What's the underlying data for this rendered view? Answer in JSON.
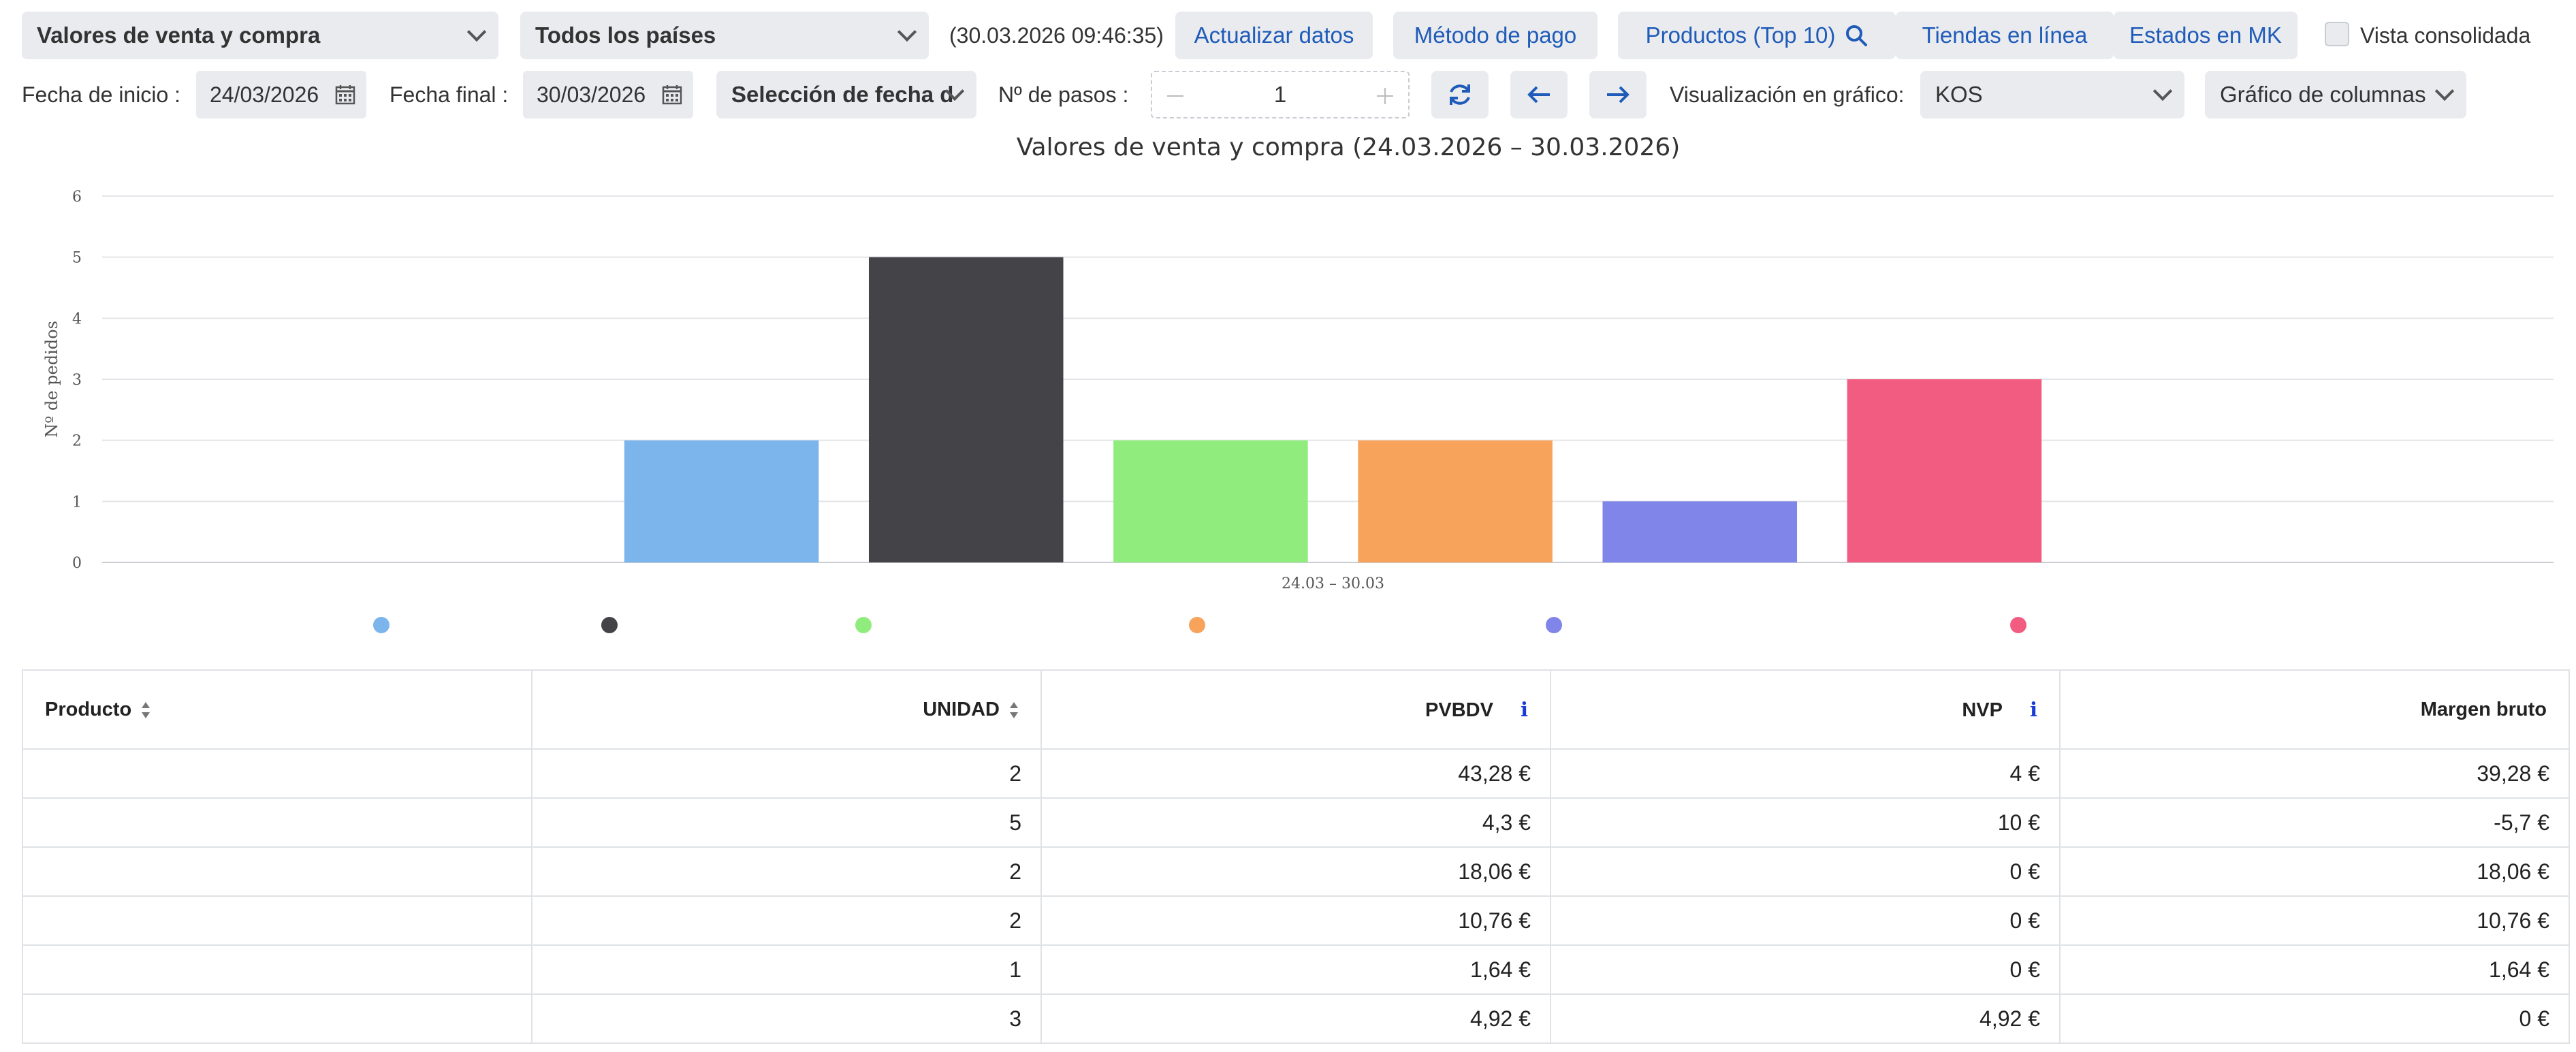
{
  "toolbar": {
    "report_select": "Valores de venta y compra",
    "country_select": "Todos los países",
    "timestamp": "(30.03.2026 09:46:35)",
    "refresh_btn": "Actualizar datos",
    "payment_btn": "Método de pago",
    "products_btn": "Productos (Top 10)",
    "online_btn": "Tiendas en línea",
    "mk_btn": "Estados en MK",
    "consolidated_label": "Vista consolidada"
  },
  "filters": {
    "start_label": "Fecha de inicio :",
    "start_value": "24/03/2026",
    "end_label": "Fecha final :",
    "end_value": "30/03/2026",
    "date_selection": "Selección de fecha d",
    "steps_label": "Nº de pasos :",
    "steps_value": "1",
    "viz_label": "Visualización en gráfico:",
    "viz_metric": "KOS",
    "chart_type_select": "Gráfico de columnas"
  },
  "icons": {
    "search": "search-icon",
    "calendar": "calendar-icon",
    "refresh": "refresh-icon",
    "prev": "arrow-left-icon",
    "next": "arrow-right-icon",
    "chevron": "chevron-down-icon",
    "info": "info-icon",
    "sort": "sort-icon"
  },
  "chart_data": {
    "type": "bar",
    "title": "Valores de venta y compra (24.03.2026 – 30.03.2026)",
    "xlabel": "",
    "ylabel": "Nº de pedidos",
    "categories": [
      "24.03 – 30.03"
    ],
    "ylim": [
      0,
      6
    ],
    "yticks": [
      0,
      1,
      2,
      3,
      4,
      5,
      6
    ],
    "grid": true,
    "legend_position": "bottom",
    "series": [
      {
        "color": "#7cb5ec",
        "values": [
          2
        ]
      },
      {
        "color": "#434348",
        "values": [
          5
        ]
      },
      {
        "color": "#90ed7d",
        "values": [
          2
        ]
      },
      {
        "color": "#f7a35c",
        "values": [
          2
        ]
      },
      {
        "color": "#8085e9",
        "values": [
          1
        ]
      },
      {
        "color": "#f15c80",
        "values": [
          3
        ]
      }
    ]
  },
  "table": {
    "headers": {
      "product": "Producto",
      "unit": "UNIDAD",
      "pvbdv": "PVBDV",
      "info_pvbdv": "i",
      "nvp": "NVP",
      "info_nvp": "i",
      "margin": "Margen bruto"
    },
    "rows": [
      {
        "product": "",
        "unit": "2",
        "pvbdv": "43,28 €",
        "nvp": "4 €",
        "margin": "39,28 €"
      },
      {
        "product": "",
        "unit": "5",
        "pvbdv": "4,3 €",
        "nvp": "10 €",
        "margin": "-5,7 €"
      },
      {
        "product": "",
        "unit": "2",
        "pvbdv": "18,06 €",
        "nvp": "0 €",
        "margin": "18,06 €"
      },
      {
        "product": "",
        "unit": "2",
        "pvbdv": "10,76 €",
        "nvp": "0 €",
        "margin": "10,76 €"
      },
      {
        "product": "",
        "unit": "1",
        "pvbdv": "1,64 €",
        "nvp": "0 €",
        "margin": "1,64 €"
      },
      {
        "product": "",
        "unit": "3",
        "pvbdv": "4,92 €",
        "nvp": "4,92 €",
        "margin": "0 €"
      }
    ]
  }
}
